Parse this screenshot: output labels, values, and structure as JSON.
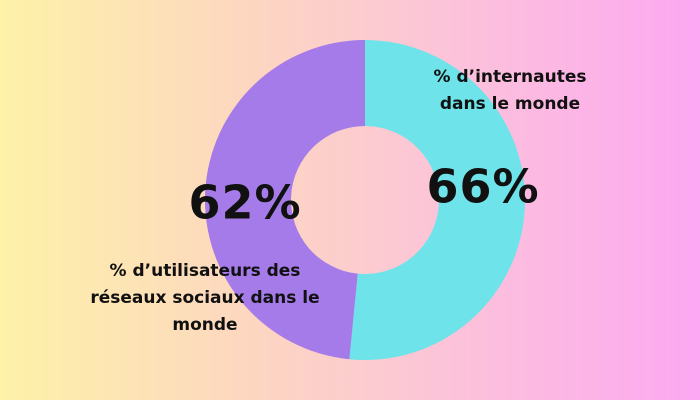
{
  "chart_data": {
    "type": "donut",
    "categories": [
      "% d’internautes dans le monde",
      "% d’utilisateurs des réseaux sociaux dans le monde"
    ],
    "values": [
      66,
      62
    ],
    "value_labels": [
      "66%",
      "62%"
    ],
    "colors": [
      "#6ee3ea",
      "#a47be8"
    ]
  }
}
